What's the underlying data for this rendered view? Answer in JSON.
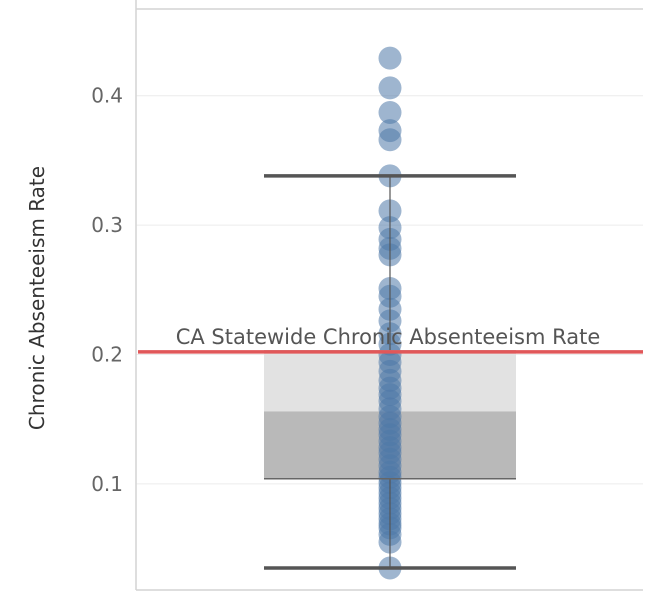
{
  "chart_data": {
    "type": "scatter",
    "subtype": "box-and-whisker",
    "ylabel": "Chronic Absenteeism Rate",
    "ylim": [
      0.018,
      0.467
    ],
    "yticks": [
      0.1,
      0.2,
      0.3,
      0.4
    ],
    "ytick_labels": [
      "0.1",
      "0.2",
      "0.3",
      "0.4"
    ],
    "grid": true,
    "box": {
      "lower_whisker": 0.035,
      "q1": 0.104,
      "median": 0.156,
      "q3": 0.203,
      "upper_whisker": 0.338
    },
    "reference_line": {
      "label": "CA Statewide Chronic Absenteeism Rate",
      "value": 0.202,
      "color": "#e15759"
    },
    "colors": {
      "points": "#4e79a7",
      "box_lower": "#b9b9b9",
      "box_upper": "#e2e2e2",
      "whisker": "#555555"
    },
    "values": [
      0.429,
      0.406,
      0.387,
      0.373,
      0.366,
      0.338,
      0.311,
      0.298,
      0.289,
      0.282,
      0.277,
      0.251,
      0.245,
      0.235,
      0.226,
      0.216,
      0.208,
      0.2,
      0.194,
      0.187,
      0.18,
      0.174,
      0.169,
      0.164,
      0.158,
      0.152,
      0.147,
      0.142,
      0.138,
      0.133,
      0.128,
      0.124,
      0.119,
      0.114,
      0.109,
      0.105,
      0.101,
      0.097,
      0.093,
      0.089,
      0.085,
      0.081,
      0.077,
      0.073,
      0.069,
      0.066,
      0.061,
      0.055,
      0.035
    ]
  }
}
